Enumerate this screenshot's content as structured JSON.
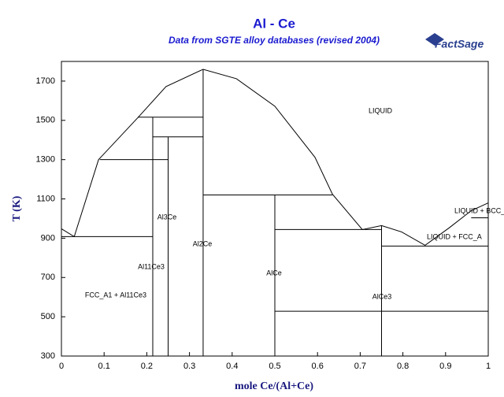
{
  "chart_data": {
    "type": "line",
    "title": "Al - Ce",
    "subtitle": "Data from SGTE alloy databases (revised 2004)",
    "logo": "FactSage",
    "x_label": "mole Ce/(Al+Ce)",
    "y_label": "T (K)",
    "xlim": [
      0,
      1
    ],
    "xticks": [
      0,
      0.1,
      0.2,
      0.3,
      0.4,
      0.5,
      0.6,
      0.7,
      0.8,
      0.9,
      1
    ],
    "ylim": [
      300,
      1800
    ],
    "yticks": [
      300,
      500,
      700,
      900,
      1100,
      1300,
      1500,
      1700
    ],
    "grid": false,
    "color": "#000000",
    "series": [
      {
        "x": [
          0,
          0.03,
          0.087,
          0.18,
          0.245,
          0.332,
          0.41,
          0.5,
          0.594,
          0.635,
          0.705,
          0.75,
          0.797,
          0.852,
          0.908,
          0.96,
          1
        ],
        "values": [
          948,
          908,
          1300,
          1516,
          1672,
          1760,
          1712,
          1572,
          1312,
          1124,
          944,
          964,
          932,
          864,
          952,
          1040,
          1080
        ]
      },
      {
        "x": [
          0,
          0.214
        ],
        "values": [
          908,
          908
        ]
      },
      {
        "x": [
          0.214,
          0.214
        ],
        "values": [
          300,
          1516
        ]
      },
      {
        "x": [
          0.179,
          0.332
        ],
        "values": [
          1516,
          1516
        ]
      },
      {
        "x": [
          0.25,
          0.25
        ],
        "values": [
          300,
          1416
        ]
      },
      {
        "x": [
          0.214,
          0.332
        ],
        "values": [
          1416,
          1416
        ]
      },
      {
        "x": [
          0.09,
          0.25
        ],
        "values": [
          1300,
          1300
        ]
      },
      {
        "x": [
          0.332,
          0.332
        ],
        "values": [
          300,
          1760
        ]
      },
      {
        "x": [
          0.332,
          0.635
        ],
        "values": [
          1120,
          1120
        ]
      },
      {
        "x": [
          0.5,
          0.5
        ],
        "values": [
          300,
          1120
        ]
      },
      {
        "x": [
          0.5,
          0.75
        ],
        "values": [
          944,
          944
        ]
      },
      {
        "x": [
          0.75,
          0.75
        ],
        "values": [
          300,
          964
        ]
      },
      {
        "x": [
          0.75,
          1
        ],
        "values": [
          860,
          860
        ]
      },
      {
        "x": [
          0.5,
          1
        ],
        "values": [
          528,
          528
        ]
      },
      {
        "x": [
          0.96,
          1
        ],
        "values": [
          1004,
          1004
        ]
      }
    ],
    "annotations": [
      "LIQUID",
      "Al3Ce",
      "Al2Ce",
      "Al11Ce3",
      "AlCe",
      "FCC_A1 + Al11Ce3",
      "AlCe3",
      "LIQUID + BCC_",
      "LIQUID + FCC_A"
    ]
  }
}
